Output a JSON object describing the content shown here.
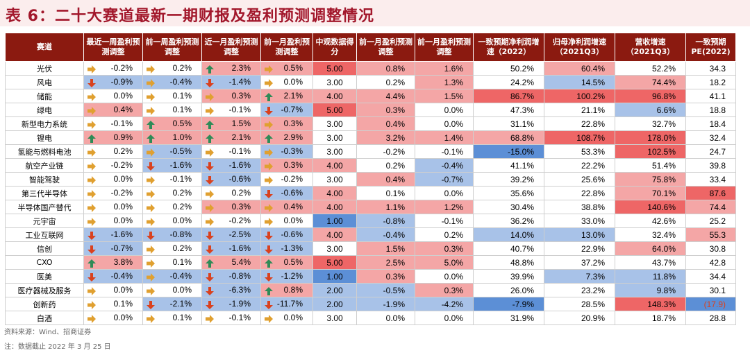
{
  "title": "表 6：二十大赛道最新一期财报及盈利预测调整情况",
  "headers": [
    "赛道",
    "最近一周盈利预测调整",
    "前一周盈利预测调整",
    "近一月盈利预测调整",
    "前一月盈利预测调整",
    "中观数据得分",
    "前一月盈利预测调整",
    "前一月盈利预测调整",
    "一致预期净利润增速（2022）",
    "归母净利润增速（2021Q3）",
    "营收增速（2021Q3）",
    "一致预期PE(2022)"
  ],
  "colors": {
    "header_bg": "#8b1a10",
    "up": "#2e8b57",
    "down": "#d9411e",
    "flat": "#e0a030",
    "pos": "#f4a6a6",
    "pos_strong": "#ee6666",
    "neg": "#a8c2e8",
    "neg_strong": "#5c8fd6"
  },
  "rows": [
    {
      "name": "光伏",
      "a": [
        "-0.2%",
        "f"
      ],
      "b": [
        "0.2%",
        "f"
      ],
      "c": [
        "2.3%",
        "u"
      ],
      "d": [
        "0.5%",
        "f"
      ],
      "e": "5.00",
      "f": "0.8%",
      "g": "1.6%",
      "h": "50.2%",
      "i": "60.4%",
      "j": "52.2%",
      "k": "34.3"
    },
    {
      "name": "风电",
      "a": [
        "-0.9%",
        "d"
      ],
      "b": [
        "-0.4%",
        "f"
      ],
      "c": [
        "-1.4%",
        "d"
      ],
      "d": [
        "0.0%",
        "f"
      ],
      "e": "3.00",
      "f": "0.2%",
      "g": "1.3%",
      "h": "24.2%",
      "i": "14.5%",
      "j": "74.4%",
      "k": "18.2"
    },
    {
      "name": "储能",
      "a": [
        "0.0%",
        "f"
      ],
      "b": [
        "0.1%",
        "f"
      ],
      "c": [
        "0.3%",
        "f"
      ],
      "d": [
        "2.1%",
        "u"
      ],
      "e": "4.00",
      "f": "4.4%",
      "g": "1.5%",
      "h": "86.7%",
      "i": "100.2%",
      "j": "96.8%",
      "k": "41.1"
    },
    {
      "name": "绿电",
      "a": [
        "0.4%",
        "f"
      ],
      "b": [
        "0.1%",
        "f"
      ],
      "c": [
        "-0.1%",
        "f"
      ],
      "d": [
        "-0.7%",
        "d"
      ],
      "e": "5.00",
      "f": "0.3%",
      "g": "0.0%",
      "h": "47.3%",
      "i": "21.1%",
      "j": "6.6%",
      "k": "18.8"
    },
    {
      "name": "新型电力系统",
      "a": [
        "-0.1%",
        "f"
      ],
      "b": [
        "0.5%",
        "u"
      ],
      "c": [
        "1.5%",
        "u"
      ],
      "d": [
        "0.3%",
        "f"
      ],
      "e": "3.00",
      "f": "0.4%",
      "g": "0.0%",
      "h": "31.1%",
      "i": "22.8%",
      "j": "32.7%",
      "k": "18.4"
    },
    {
      "name": "锂电",
      "a": [
        "0.9%",
        "u"
      ],
      "b": [
        "1.0%",
        "u"
      ],
      "c": [
        "2.1%",
        "u"
      ],
      "d": [
        "2.9%",
        "u"
      ],
      "e": "3.00",
      "f": "3.2%",
      "g": "1.4%",
      "h": "68.8%",
      "i": "108.7%",
      "j": "178.0%",
      "k": "32.4"
    },
    {
      "name": "氢能与燃料电池",
      "a": [
        "0.2%",
        "f"
      ],
      "b": [
        "-0.5%",
        "f"
      ],
      "c": [
        "-0.1%",
        "f"
      ],
      "d": [
        "-0.3%",
        "f"
      ],
      "e": "3.00",
      "f": "-0.2%",
      "g": "-0.1%",
      "h": "-15.0%",
      "i": "53.3%",
      "j": "102.5%",
      "k": "24.7"
    },
    {
      "name": "航空产业链",
      "a": [
        "-0.2%",
        "f"
      ],
      "b": [
        "-1.6%",
        "d"
      ],
      "c": [
        "-1.6%",
        "d"
      ],
      "d": [
        "0.3%",
        "f"
      ],
      "e": "4.00",
      "f": "0.2%",
      "g": "-0.4%",
      "h": "41.1%",
      "i": "22.2%",
      "j": "51.4%",
      "k": "39.8"
    },
    {
      "name": "智能驾驶",
      "a": [
        "0.0%",
        "f"
      ],
      "b": [
        "-0.1%",
        "f"
      ],
      "c": [
        "-0.6%",
        "d"
      ],
      "d": [
        "-0.2%",
        "f"
      ],
      "e": "3.00",
      "f": "0.4%",
      "g": "-0.7%",
      "h": "39.2%",
      "i": "25.6%",
      "j": "75.8%",
      "k": "33.4"
    },
    {
      "name": "第三代半导体",
      "a": [
        "-0.2%",
        "f"
      ],
      "b": [
        "0.2%",
        "f"
      ],
      "c": [
        "0.2%",
        "f"
      ],
      "d": [
        "-0.6%",
        "d"
      ],
      "e": "4.00",
      "f": "0.1%",
      "g": "0.0%",
      "h": "35.6%",
      "i": "22.8%",
      "j": "70.1%",
      "k": "87.6"
    },
    {
      "name": "半导体国产替代",
      "a": [
        "0.0%",
        "f"
      ],
      "b": [
        "0.2%",
        "f"
      ],
      "c": [
        "0.3%",
        "f"
      ],
      "d": [
        "0.4%",
        "f"
      ],
      "e": "4.00",
      "f": "1.1%",
      "g": "1.2%",
      "h": "30.4%",
      "i": "38.8%",
      "j": "140.6%",
      "k": "74.4"
    },
    {
      "name": "元宇宙",
      "a": [
        "0.0%",
        "f"
      ],
      "b": [
        "0.0%",
        "f"
      ],
      "c": [
        "-0.2%",
        "f"
      ],
      "d": [
        "0.0%",
        "f"
      ],
      "e": "1.00",
      "f": "-0.8%",
      "g": "-0.1%",
      "h": "36.2%",
      "i": "33.0%",
      "j": "42.6%",
      "k": "25.2"
    },
    {
      "name": "工业互联网",
      "a": [
        "-1.6%",
        "d"
      ],
      "b": [
        "-0.8%",
        "d"
      ],
      "c": [
        "-2.5%",
        "d"
      ],
      "d": [
        "-0.6%",
        "d"
      ],
      "e": "4.00",
      "f": "-0.4%",
      "g": "0.2%",
      "h": "14.0%",
      "i": "13.0%",
      "j": "32.4%",
      "k": "55.3"
    },
    {
      "name": "信创",
      "a": [
        "-0.7%",
        "d"
      ],
      "b": [
        "0.2%",
        "f"
      ],
      "c": [
        "-1.6%",
        "d"
      ],
      "d": [
        "-1.3%",
        "d"
      ],
      "e": "3.00",
      "f": "1.5%",
      "g": "0.3%",
      "h": "40.7%",
      "i": "22.9%",
      "j": "64.0%",
      "k": "30.8"
    },
    {
      "name": "CXO",
      "a": [
        "3.8%",
        "u"
      ],
      "b": [
        "0.1%",
        "f"
      ],
      "c": [
        "5.4%",
        "u"
      ],
      "d": [
        "0.5%",
        "u"
      ],
      "e": "5.00",
      "f": "2.5%",
      "g": "5.0%",
      "h": "48.8%",
      "i": "37.2%",
      "j": "43.7%",
      "k": "42.8"
    },
    {
      "name": "医美",
      "a": [
        "-0.4%",
        "d"
      ],
      "b": [
        "-0.4%",
        "f"
      ],
      "c": [
        "-0.8%",
        "d"
      ],
      "d": [
        "-1.2%",
        "d"
      ],
      "e": "1.00",
      "f": "0.3%",
      "g": "0.0%",
      "h": "39.9%",
      "i": "7.3%",
      "j": "11.8%",
      "k": "34.4"
    },
    {
      "name": "医疗器械及服务",
      "a": [
        "0.0%",
        "f"
      ],
      "b": [
        "0.0%",
        "f"
      ],
      "c": [
        "-6.3%",
        "d"
      ],
      "d": [
        "0.8%",
        "u"
      ],
      "e": "2.00",
      "f": "-0.5%",
      "g": "0.3%",
      "h": "26.0%",
      "i": "23.2%",
      "j": "9.8%",
      "k": "30.1"
    },
    {
      "name": "创新药",
      "a": [
        "0.1%",
        "f"
      ],
      "b": [
        "-2.1%",
        "d"
      ],
      "c": [
        "-1.9%",
        "d"
      ],
      "d": [
        "-11.7%",
        "d"
      ],
      "e": "2.00",
      "f": "-1.9%",
      "g": "-4.2%",
      "h": "-7.9%",
      "i": "28.5%",
      "j": "148.3%",
      "k": "(17.9)"
    },
    {
      "name": "白酒",
      "a": [
        "0.0%",
        "f"
      ],
      "b": [
        "0.1%",
        "f"
      ],
      "c": [
        "-0.1%",
        "f"
      ],
      "d": [
        "0.0%",
        "f"
      ],
      "e": "3.00",
      "f": "0.0%",
      "g": "0.0%",
      "h": "31.9%",
      "i": "20.9%",
      "j": "18.7%",
      "k": "28.8"
    }
  ],
  "source": "资料来源：Wind、招商证券",
  "note": "注：数据截止 2022 年 3 月 25 日"
}
